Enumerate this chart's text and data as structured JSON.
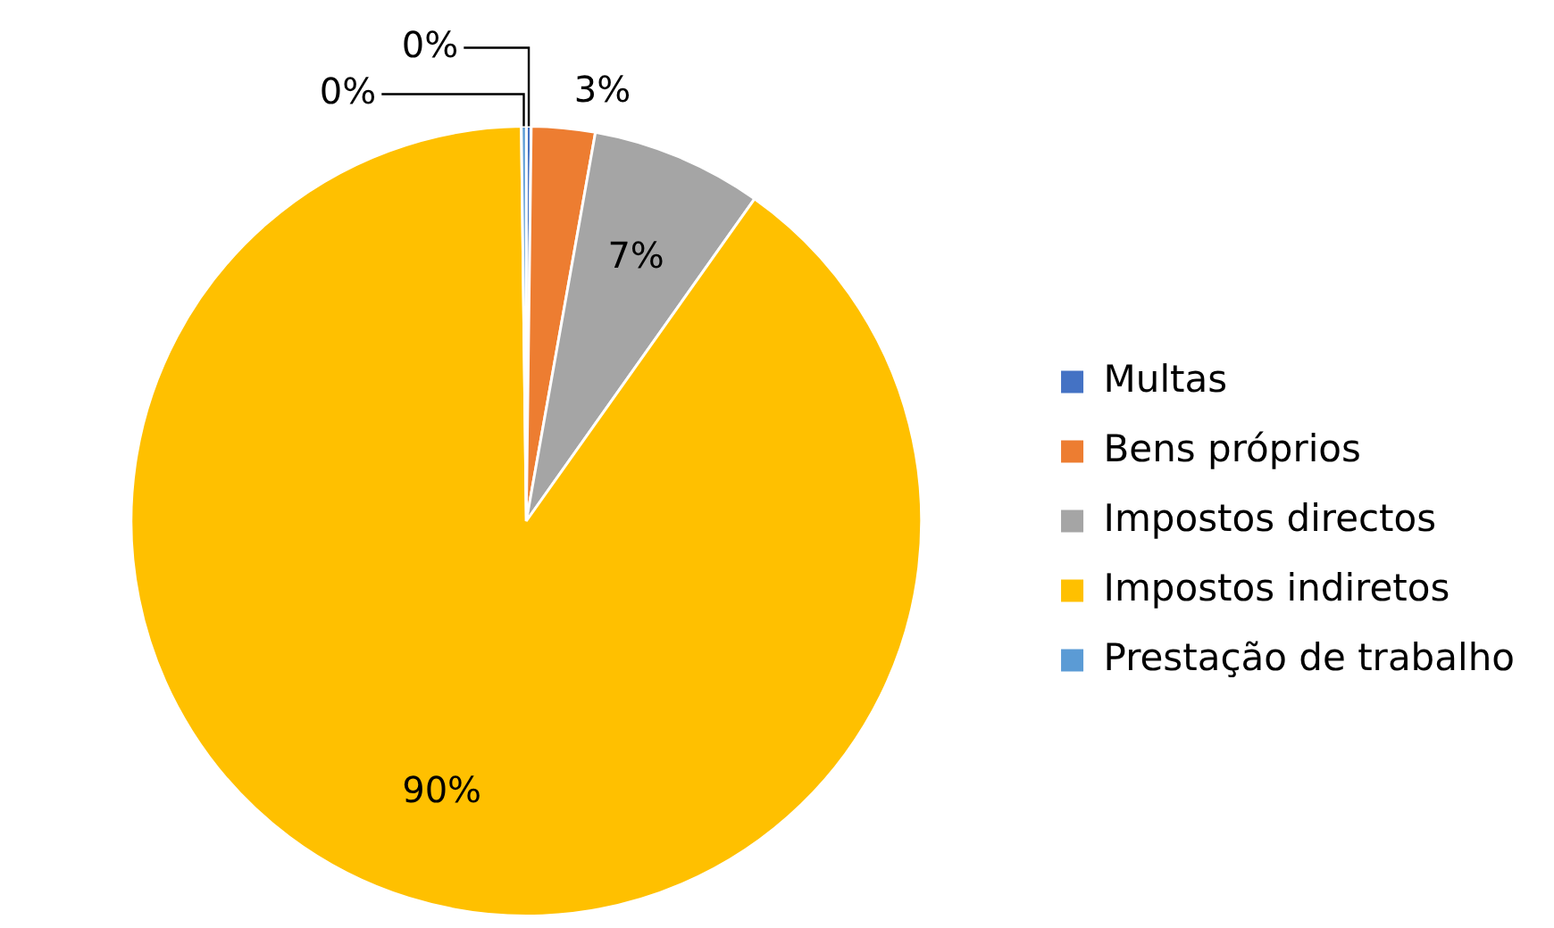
{
  "chart_data": {
    "type": "pie",
    "categories": [
      "Multas",
      "Bens próprios",
      "Impostos directos",
      "Impostos indiretos",
      "Prestação de trabalho"
    ],
    "values": [
      0.2,
      2.6,
      7,
      90,
      0.2
    ],
    "value_labels": [
      "0%",
      "3%",
      "7%",
      "90%",
      "0%"
    ],
    "colors": [
      "#4472c4",
      "#ed7d31",
      "#a5a5a5",
      "#ffc000",
      "#5b9bd5"
    ],
    "legend": "right"
  }
}
